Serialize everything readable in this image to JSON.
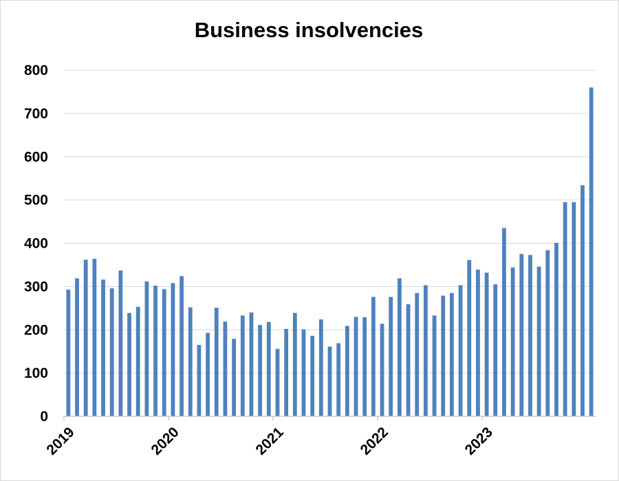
{
  "chart_data": {
    "type": "bar",
    "title": "Business insolvencies",
    "xlabel": "",
    "ylabel": "",
    "ylim": [
      0,
      800
    ],
    "yticks": [
      0,
      100,
      200,
      300,
      400,
      500,
      600,
      700,
      800
    ],
    "xtick_labels": [
      "2019",
      "2020",
      "2021",
      "2022",
      "2023"
    ],
    "grid": true,
    "bar_color": "#4f81bd",
    "start": "2019-01",
    "frequency": "monthly",
    "categories": [
      "2019-01",
      "2019-02",
      "2019-03",
      "2019-04",
      "2019-05",
      "2019-06",
      "2019-07",
      "2019-08",
      "2019-09",
      "2019-10",
      "2019-11",
      "2019-12",
      "2020-01",
      "2020-02",
      "2020-03",
      "2020-04",
      "2020-05",
      "2020-06",
      "2020-07",
      "2020-08",
      "2020-09",
      "2020-10",
      "2020-11",
      "2020-12",
      "2021-01",
      "2021-02",
      "2021-03",
      "2021-04",
      "2021-05",
      "2021-06",
      "2021-07",
      "2021-08",
      "2021-09",
      "2021-10",
      "2021-11",
      "2021-12",
      "2022-01",
      "2022-02",
      "2022-03",
      "2022-04",
      "2022-05",
      "2022-06",
      "2022-07",
      "2022-08",
      "2022-09",
      "2022-10",
      "2022-11",
      "2022-12",
      "2023-01",
      "2023-02",
      "2023-03",
      "2023-04",
      "2023-05",
      "2023-06",
      "2023-07",
      "2023-08",
      "2023-09",
      "2023-10",
      "2023-11",
      "2023-12",
      "2024-01"
    ],
    "values": [
      293,
      319,
      362,
      364,
      316,
      296,
      337,
      239,
      253,
      312,
      302,
      294,
      308,
      324,
      252,
      165,
      193,
      251,
      219,
      179,
      233,
      240,
      211,
      218,
      156,
      202,
      239,
      201,
      186,
      224,
      161,
      169,
      209,
      230,
      229,
      276,
      214,
      276,
      319,
      259,
      285,
      303,
      233,
      279,
      285,
      303,
      361,
      339,
      332,
      305,
      435,
      344,
      375,
      373,
      346,
      384,
      401,
      495,
      495,
      534,
      760
    ]
  }
}
